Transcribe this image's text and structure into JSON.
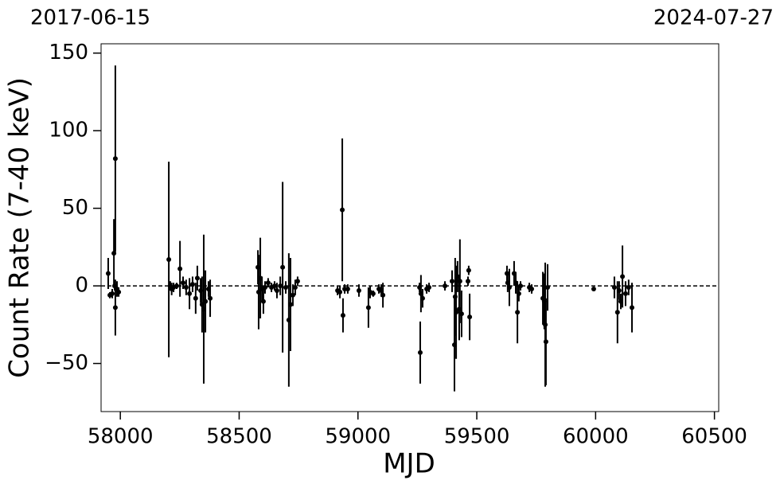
{
  "chart_data": {
    "type": "errorbar",
    "annotations": [
      "2017-06-15",
      "2024-07-27"
    ],
    "x_label": "MJD",
    "y_label": "Count Rate (7-40 keV)",
    "x": [
      57949,
      57956,
      57966,
      57973,
      57976,
      57979,
      57979,
      57986,
      57993,
      58204,
      58210,
      58216,
      58224,
      58237,
      58251,
      58264,
      58277,
      58291,
      58304,
      58317,
      58324,
      58338,
      58344,
      58351,
      58358,
      58371,
      58378,
      58579,
      58582,
      58589,
      58596,
      58602,
      58609,
      58622,
      58636,
      58649,
      58659,
      58673,
      58683,
      58696,
      58709,
      58716,
      58726,
      58736,
      58746,
      58914,
      58924,
      58934,
      58937,
      58944,
      58957,
      59004,
      59044,
      59051,
      59064,
      59088,
      59098,
      59105,
      59259,
      59262,
      59265,
      59272,
      59289,
      59299,
      59366,
      59396,
      59406,
      59409,
      59413,
      59419,
      59426,
      59429,
      59436,
      59463,
      59466,
      59470,
      59627,
      59630,
      59637,
      59657,
      59664,
      59671,
      59677,
      59684,
      59721,
      59731,
      59778,
      59784,
      59788,
      59791,
      59798,
      59992,
      60079,
      60092,
      60099,
      60106,
      60113,
      60126,
      60139,
      60153
    ],
    "values": [
      8,
      -6,
      -5,
      21,
      0,
      82,
      -14,
      -2,
      -4,
      17,
      0,
      -2,
      -1,
      0,
      11,
      2,
      -1,
      -5,
      1,
      -8,
      5,
      -3,
      -12,
      -15,
      -10,
      -2,
      -8,
      12,
      -4,
      5,
      -2,
      -10,
      -1,
      2,
      -1,
      0,
      -3,
      0,
      12,
      -1,
      -22,
      -12,
      -6,
      -1,
      3,
      -3,
      -4,
      49,
      -19,
      -2,
      -2,
      -3,
      -14,
      -4,
      -5,
      -2,
      -3,
      -6,
      -1,
      -43,
      -5,
      -8,
      -2,
      -1,
      0,
      3,
      -38,
      -7,
      -17,
      6,
      -15,
      3,
      -18,
      3,
      10,
      -20,
      8,
      2,
      -1,
      8,
      2,
      -17,
      -5,
      0,
      -1,
      -2,
      -8,
      -10,
      -25,
      -36,
      -1,
      -2,
      -1,
      -17,
      -3,
      -10,
      6,
      -5,
      -1,
      -14
    ],
    "errors": [
      10,
      2,
      3,
      22,
      3,
      60,
      18,
      5,
      3,
      63,
      3,
      4,
      3,
      2,
      18,
      4,
      5,
      10,
      5,
      10,
      8,
      8,
      18,
      48,
      20,
      5,
      12,
      11,
      24,
      26,
      8,
      8,
      4,
      3,
      3,
      3,
      5,
      6,
      55,
      4,
      43,
      30,
      7,
      5,
      3,
      3,
      4,
      46,
      11,
      3,
      3,
      4,
      13,
      4,
      2,
      3,
      4,
      8,
      3,
      20,
      12,
      6,
      3,
      3,
      3,
      7,
      30,
      25,
      30,
      10,
      20,
      27,
      15,
      3,
      3,
      15,
      5,
      6,
      12,
      8,
      7,
      20,
      5,
      3,
      3,
      3,
      17,
      18,
      40,
      28,
      15,
      1,
      7,
      20,
      6,
      5,
      20,
      8,
      5,
      16
    ],
    "color": "#000000",
    "hline": 0,
    "xlim": [
      57919,
      60518
    ],
    "ylim": [
      -81,
      156
    ],
    "xticks": [
      58000,
      58500,
      59000,
      59500,
      60000,
      60500
    ],
    "yticks": [
      {
        "value": -50,
        "label": "−50"
      },
      0,
      50,
      100,
      150
    ]
  }
}
